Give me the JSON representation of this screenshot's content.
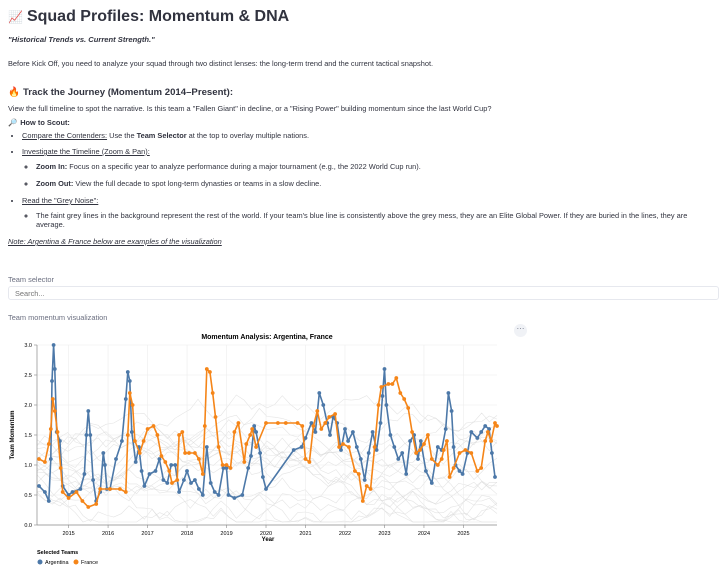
{
  "page": {
    "title_icon": "📈",
    "title": "Squad Profiles: Momentum & DNA",
    "subtitle": "\"Historical Trends vs. Current Strength.\"",
    "intro": "Before Kick Off, you need to analyze your squad through two distinct lenses: the long-term trend and the current tactical snapshot.",
    "section_icon": "🔥",
    "section_title": "Track the Journey (Momentum 2014–Present):",
    "section_para": "View the full timeline to spot the narrative. Is this team a \"Fallen Giant\" in decline, or a \"Rising Power\" building momentum since the last World Cup?",
    "howto_icon": "🔎",
    "howto_title": "How to Scout:",
    "b1_link": "Compare the Contenders:",
    "b1_pre": " Use the ",
    "b1_bold": "Team Selector",
    "b1_post": " at the top to overlay multiple nations.",
    "b2_link": "Investigate the Timeline (Zoom & Pan):",
    "b2a_bold": "Zoom In:",
    "b2a_text": " Focus on a specific year to analyze performance during a major tournament (e.g., the 2022 World Cup run).",
    "b2b_bold": "Zoom Out:",
    "b2b_text": " View the full decade to spot long-term dynasties or teams in a slow decline.",
    "b3_link": "Read the \"Grey Noise\":",
    "b3a_text": "The faint grey lines in the background represent the rest of the world. If your team's blue line is consistently above the grey mess, they are an Elite Global Power. If they are buried in the lines, they are average.",
    "note": "Note: Argentina & France below are examples of the visualization",
    "team_selector_label": "Team selector",
    "search_placeholder": "Search...",
    "viz_label": "Team momentum visualization",
    "menu_glyph": "⋯"
  },
  "chart_data": {
    "type": "line",
    "title": "Momentum Analysis: Argentina, France",
    "xlabel": "Year",
    "ylabel": "Team Momentum",
    "xlim": [
      2014.2,
      2025.85
    ],
    "ylim": [
      0,
      3.0
    ],
    "yticks": [
      "0.0",
      "0.5",
      "1.0",
      "1.5",
      "2.0",
      "2.5",
      "3.0"
    ],
    "xticks": [
      "2015",
      "2016",
      "2017",
      "2018",
      "2019",
      "2020",
      "2021",
      "2022",
      "2023",
      "2024",
      "2025"
    ],
    "legend_title": "Selected Teams",
    "legend_position": "bottom-left",
    "grid": true,
    "colors": {
      "Argentina": "#4c78a8",
      "France": "#f58518",
      "noise": "#d9d9d9"
    },
    "series": [
      {
        "name": "Argentina",
        "points": [
          [
            2014.25,
            0.65
          ],
          [
            2014.4,
            0.55
          ],
          [
            2014.5,
            0.4
          ],
          [
            2014.55,
            1.1
          ],
          [
            2014.58,
            2.4
          ],
          [
            2014.62,
            3.0
          ],
          [
            2014.65,
            2.6
          ],
          [
            2014.7,
            1.55
          ],
          [
            2014.78,
            1.4
          ],
          [
            2014.85,
            0.65
          ],
          [
            2015.0,
            0.5
          ],
          [
            2015.1,
            0.55
          ],
          [
            2015.3,
            0.6
          ],
          [
            2015.4,
            0.85
          ],
          [
            2015.45,
            1.5
          ],
          [
            2015.5,
            1.9
          ],
          [
            2015.55,
            1.5
          ],
          [
            2015.62,
            0.75
          ],
          [
            2015.7,
            0.4
          ],
          [
            2015.8,
            0.55
          ],
          [
            2015.88,
            1.2
          ],
          [
            2015.92,
            1.0
          ],
          [
            2015.97,
            0.6
          ],
          [
            2016.05,
            0.6
          ],
          [
            2016.2,
            1.1
          ],
          [
            2016.35,
            1.4
          ],
          [
            2016.45,
            2.1
          ],
          [
            2016.5,
            2.55
          ],
          [
            2016.55,
            2.4
          ],
          [
            2016.6,
            1.55
          ],
          [
            2016.7,
            1.05
          ],
          [
            2016.78,
            1.3
          ],
          [
            2016.85,
            0.9
          ],
          [
            2016.92,
            0.65
          ],
          [
            2017.05,
            0.85
          ],
          [
            2017.2,
            0.9
          ],
          [
            2017.3,
            1.1
          ],
          [
            2017.4,
            0.75
          ],
          [
            2017.5,
            0.7
          ],
          [
            2017.6,
            1.0
          ],
          [
            2017.7,
            1.0
          ],
          [
            2017.8,
            0.55
          ],
          [
            2017.92,
            0.75
          ],
          [
            2018.0,
            0.9
          ],
          [
            2018.1,
            0.7
          ],
          [
            2018.2,
            0.75
          ],
          [
            2018.3,
            0.6
          ],
          [
            2018.4,
            0.5
          ],
          [
            2018.5,
            1.3
          ],
          [
            2018.6,
            0.7
          ],
          [
            2018.7,
            0.55
          ],
          [
            2018.8,
            0.5
          ],
          [
            2018.92,
            0.95
          ],
          [
            2019.0,
            0.95
          ],
          [
            2019.05,
            0.5
          ],
          [
            2019.2,
            0.45
          ],
          [
            2019.4,
            0.5
          ],
          [
            2019.55,
            0.95
          ],
          [
            2019.62,
            1.15
          ],
          [
            2019.7,
            1.65
          ],
          [
            2019.75,
            1.55
          ],
          [
            2019.85,
            1.2
          ],
          [
            2019.92,
            0.8
          ],
          [
            2020.0,
            0.6
          ],
          [
            2020.7,
            1.25
          ],
          [
            2020.9,
            1.3
          ],
          [
            2021.0,
            1.45
          ],
          [
            2021.15,
            1.7
          ],
          [
            2021.25,
            1.55
          ],
          [
            2021.35,
            2.2
          ],
          [
            2021.45,
            2.0
          ],
          [
            2021.55,
            1.7
          ],
          [
            2021.62,
            1.5
          ],
          [
            2021.7,
            1.8
          ],
          [
            2021.8,
            1.7
          ],
          [
            2021.9,
            1.25
          ],
          [
            2022.0,
            1.6
          ],
          [
            2022.08,
            1.4
          ],
          [
            2022.2,
            1.55
          ],
          [
            2022.3,
            1.3
          ],
          [
            2022.4,
            1.1
          ],
          [
            2022.5,
            0.75
          ],
          [
            2022.6,
            1.2
          ],
          [
            2022.7,
            1.55
          ],
          [
            2022.8,
            1.25
          ],
          [
            2022.9,
            1.7
          ],
          [
            2022.95,
            2.15
          ],
          [
            2023.0,
            2.6
          ],
          [
            2023.05,
            2.0
          ],
          [
            2023.15,
            1.5
          ],
          [
            2023.25,
            1.3
          ],
          [
            2023.35,
            1.1
          ],
          [
            2023.45,
            1.2
          ],
          [
            2023.55,
            0.85
          ],
          [
            2023.65,
            1.4
          ],
          [
            2023.75,
            1.5
          ],
          [
            2023.85,
            1.1
          ],
          [
            2023.92,
            1.4
          ],
          [
            2024.05,
            0.9
          ],
          [
            2024.2,
            0.7
          ],
          [
            2024.35,
            1.3
          ],
          [
            2024.45,
            1.25
          ],
          [
            2024.55,
            1.6
          ],
          [
            2024.62,
            2.2
          ],
          [
            2024.7,
            1.9
          ],
          [
            2024.75,
            1.3
          ],
          [
            2024.8,
            1.0
          ],
          [
            2024.9,
            0.9
          ],
          [
            2024.98,
            0.85
          ],
          [
            2025.1,
            1.2
          ],
          [
            2025.2,
            1.55
          ],
          [
            2025.35,
            1.45
          ],
          [
            2025.45,
            1.55
          ],
          [
            2025.55,
            1.65
          ],
          [
            2025.65,
            1.6
          ],
          [
            2025.72,
            1.2
          ],
          [
            2025.8,
            0.8
          ]
        ]
      },
      {
        "name": "France",
        "points": [
          [
            2014.25,
            1.1
          ],
          [
            2014.4,
            1.05
          ],
          [
            2014.5,
            1.35
          ],
          [
            2014.55,
            1.6
          ],
          [
            2014.6,
            2.1
          ],
          [
            2014.65,
            1.9
          ],
          [
            2014.72,
            1.55
          ],
          [
            2014.8,
            0.95
          ],
          [
            2014.85,
            0.55
          ],
          [
            2015.0,
            0.45
          ],
          [
            2015.2,
            0.55
          ],
          [
            2015.35,
            0.4
          ],
          [
            2015.5,
            0.3
          ],
          [
            2015.7,
            0.35
          ],
          [
            2015.8,
            0.6
          ],
          [
            2016.05,
            0.6
          ],
          [
            2016.3,
            0.6
          ],
          [
            2016.45,
            0.55
          ],
          [
            2016.5,
            1.5
          ],
          [
            2016.55,
            2.2
          ],
          [
            2016.62,
            2.0
          ],
          [
            2016.68,
            1.4
          ],
          [
            2016.8,
            1.2
          ],
          [
            2016.9,
            1.4
          ],
          [
            2017.0,
            1.6
          ],
          [
            2017.15,
            1.65
          ],
          [
            2017.25,
            1.5
          ],
          [
            2017.35,
            1.15
          ],
          [
            2017.45,
            1.05
          ],
          [
            2017.55,
            0.9
          ],
          [
            2017.62,
            0.7
          ],
          [
            2017.75,
            0.75
          ],
          [
            2017.8,
            1.5
          ],
          [
            2017.88,
            1.55
          ],
          [
            2017.95,
            1.2
          ],
          [
            2018.05,
            1.2
          ],
          [
            2018.2,
            1.2
          ],
          [
            2018.3,
            1.1
          ],
          [
            2018.4,
            0.85
          ],
          [
            2018.45,
            1.65
          ],
          [
            2018.5,
            2.6
          ],
          [
            2018.58,
            2.55
          ],
          [
            2018.65,
            2.2
          ],
          [
            2018.72,
            1.8
          ],
          [
            2018.8,
            1.3
          ],
          [
            2018.9,
            1.0
          ],
          [
            2019.0,
            1.0
          ],
          [
            2019.1,
            0.95
          ],
          [
            2019.2,
            1.55
          ],
          [
            2019.3,
            1.7
          ],
          [
            2019.45,
            1.05
          ],
          [
            2019.5,
            1.35
          ],
          [
            2019.6,
            1.5
          ],
          [
            2019.65,
            1.6
          ],
          [
            2019.75,
            1.3
          ],
          [
            2020.0,
            1.7
          ],
          [
            2020.3,
            1.7
          ],
          [
            2020.5,
            1.7
          ],
          [
            2020.8,
            1.7
          ],
          [
            2020.92,
            1.65
          ],
          [
            2021.0,
            1.1
          ],
          [
            2021.1,
            1.05
          ],
          [
            2021.2,
            1.65
          ],
          [
            2021.3,
            1.9
          ],
          [
            2021.4,
            1.6
          ],
          [
            2021.5,
            1.7
          ],
          [
            2021.6,
            1.8
          ],
          [
            2021.75,
            1.85
          ],
          [
            2021.85,
            1.3
          ],
          [
            2021.95,
            1.35
          ],
          [
            2022.1,
            1.3
          ],
          [
            2022.25,
            0.9
          ],
          [
            2022.35,
            0.85
          ],
          [
            2022.45,
            0.4
          ],
          [
            2022.55,
            0.65
          ],
          [
            2022.65,
            0.6
          ],
          [
            2022.75,
            1.3
          ],
          [
            2022.85,
            2.0
          ],
          [
            2022.92,
            2.3
          ],
          [
            2023.1,
            2.35
          ],
          [
            2023.2,
            2.35
          ],
          [
            2023.3,
            2.45
          ],
          [
            2023.4,
            2.2
          ],
          [
            2023.5,
            2.1
          ],
          [
            2023.6,
            1.95
          ],
          [
            2023.7,
            1.55
          ],
          [
            2023.8,
            1.2
          ],
          [
            2023.9,
            1.25
          ],
          [
            2024.0,
            1.35
          ],
          [
            2024.1,
            1.5
          ],
          [
            2024.2,
            1.1
          ],
          [
            2024.35,
            1.0
          ],
          [
            2024.45,
            1.1
          ],
          [
            2024.5,
            1.25
          ],
          [
            2024.58,
            1.4
          ],
          [
            2024.65,
            0.8
          ],
          [
            2024.75,
            0.95
          ],
          [
            2024.9,
            1.2
          ],
          [
            2025.05,
            1.25
          ],
          [
            2025.2,
            1.2
          ],
          [
            2025.35,
            0.9
          ],
          [
            2025.45,
            0.95
          ],
          [
            2025.55,
            1.4
          ],
          [
            2025.62,
            1.55
          ],
          [
            2025.7,
            1.4
          ],
          [
            2025.8,
            1.7
          ],
          [
            2025.85,
            1.65
          ]
        ]
      }
    ]
  }
}
